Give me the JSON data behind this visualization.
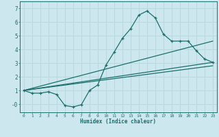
{
  "xlabel": "Humidex (Indice chaleur)",
  "ylabel": "",
  "background_color": "#cce8ee",
  "grid_color": "#b8d8de",
  "line_color": "#1a6e6a",
  "xlim": [
    -0.5,
    23.5
  ],
  "ylim": [
    -0.6,
    7.5
  ],
  "yticks": [
    0,
    1,
    2,
    3,
    4,
    5,
    6,
    7
  ],
  "ytick_labels": [
    "-0",
    "1",
    "2",
    "3",
    "4",
    "5",
    "6",
    "7"
  ],
  "xticks": [
    0,
    1,
    2,
    3,
    4,
    5,
    6,
    7,
    8,
    9,
    10,
    11,
    12,
    13,
    14,
    15,
    16,
    17,
    18,
    19,
    20,
    21,
    22,
    23
  ],
  "curve1_x": [
    0,
    1,
    2,
    3,
    4,
    5,
    6,
    7,
    8,
    9,
    10,
    11,
    12,
    13,
    14,
    15,
    16,
    17,
    18,
    19,
    20,
    21,
    22,
    23
  ],
  "curve1_y": [
    1.0,
    0.8,
    0.8,
    0.9,
    0.7,
    -0.1,
    -0.2,
    -0.05,
    1.0,
    1.4,
    2.85,
    3.8,
    4.8,
    5.5,
    6.5,
    6.8,
    6.3,
    5.1,
    4.6,
    4.6,
    4.6,
    3.9,
    3.3,
    3.05
  ],
  "line1_x": [
    0,
    23
  ],
  "line1_y": [
    1.0,
    4.6
  ],
  "line2_x": [
    0,
    23
  ],
  "line2_y": [
    1.0,
    2.8
  ],
  "line3_x": [
    0,
    23
  ],
  "line3_y": [
    1.0,
    3.05
  ]
}
